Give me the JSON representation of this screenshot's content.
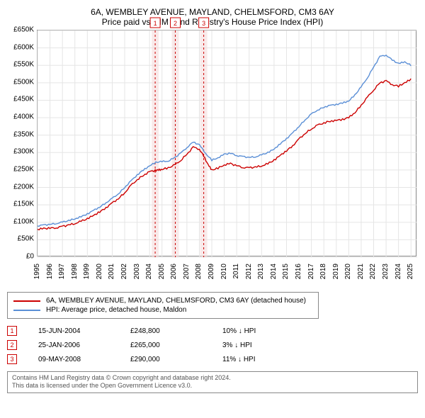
{
  "title": {
    "line1": "6A, WEMBLEY AVENUE, MAYLAND, CHELMSFORD, CM3 6AY",
    "line2": "Price paid vs. HM Land Registry's House Price Index (HPI)"
  },
  "chart": {
    "type": "line",
    "background_color": "#ffffff",
    "border_color": "#888888",
    "grid_color": "#e5e5e5",
    "ylim": [
      0,
      650000
    ],
    "ytick_step": 50000,
    "ytick_labels": [
      "£0",
      "£50K",
      "£100K",
      "£150K",
      "£200K",
      "£250K",
      "£300K",
      "£350K",
      "£400K",
      "£450K",
      "£500K",
      "£550K",
      "£600K",
      "£650K"
    ],
    "xlim": [
      1995,
      2025.5
    ],
    "xtick_step": 1,
    "xtick_labels": [
      "1995",
      "1996",
      "1997",
      "1998",
      "1999",
      "2000",
      "2001",
      "2002",
      "2003",
      "2004",
      "2005",
      "2006",
      "2007",
      "2008",
      "2009",
      "2010",
      "2011",
      "2012",
      "2013",
      "2014",
      "2015",
      "2016",
      "2017",
      "2018",
      "2019",
      "2020",
      "2021",
      "2022",
      "2023",
      "2024",
      "2025"
    ],
    "label_fontsize": 10,
    "line_width": 1.4,
    "series": [
      {
        "name": "property",
        "color": "#cc0000",
        "points": [
          [
            1995.0,
            80000
          ],
          [
            1995.5,
            82000
          ],
          [
            1996.0,
            83000
          ],
          [
            1996.5,
            85000
          ],
          [
            1997.0,
            88000
          ],
          [
            1997.5,
            92000
          ],
          [
            1998.0,
            97000
          ],
          [
            1998.5,
            103000
          ],
          [
            1999.0,
            110000
          ],
          [
            1999.5,
            120000
          ],
          [
            2000.0,
            130000
          ],
          [
            2000.5,
            142000
          ],
          [
            2001.0,
            155000
          ],
          [
            2001.5,
            168000
          ],
          [
            2002.0,
            185000
          ],
          [
            2002.5,
            205000
          ],
          [
            2003.0,
            222000
          ],
          [
            2003.5,
            235000
          ],
          [
            2004.0,
            245000
          ],
          [
            2004.45,
            248800
          ],
          [
            2004.7,
            250000
          ],
          [
            2005.0,
            252000
          ],
          [
            2005.5,
            256000
          ],
          [
            2006.07,
            265000
          ],
          [
            2006.5,
            278000
          ],
          [
            2007.0,
            295000
          ],
          [
            2007.5,
            315000
          ],
          [
            2008.0,
            310000
          ],
          [
            2008.35,
            290000
          ],
          [
            2008.7,
            265000
          ],
          [
            2009.0,
            250000
          ],
          [
            2009.5,
            255000
          ],
          [
            2010.0,
            265000
          ],
          [
            2010.5,
            268000
          ],
          [
            2011.0,
            262000
          ],
          [
            2011.5,
            258000
          ],
          [
            2012.0,
            256000
          ],
          [
            2012.5,
            258000
          ],
          [
            2013.0,
            262000
          ],
          [
            2013.5,
            268000
          ],
          [
            2014.0,
            278000
          ],
          [
            2014.5,
            292000
          ],
          [
            2015.0,
            305000
          ],
          [
            2015.5,
            320000
          ],
          [
            2016.0,
            338000
          ],
          [
            2016.5,
            355000
          ],
          [
            2017.0,
            368000
          ],
          [
            2017.5,
            378000
          ],
          [
            2018.0,
            385000
          ],
          [
            2018.5,
            390000
          ],
          [
            2019.0,
            392000
          ],
          [
            2019.5,
            395000
          ],
          [
            2020.0,
            400000
          ],
          [
            2020.5,
            415000
          ],
          [
            2021.0,
            435000
          ],
          [
            2021.5,
            458000
          ],
          [
            2022.0,
            480000
          ],
          [
            2022.5,
            500000
          ],
          [
            2023.0,
            505000
          ],
          [
            2023.5,
            495000
          ],
          [
            2024.0,
            490000
          ],
          [
            2024.5,
            500000
          ],
          [
            2025.0,
            510000
          ]
        ]
      },
      {
        "name": "hpi",
        "color": "#5b8fd6",
        "points": [
          [
            1995.0,
            90000
          ],
          [
            1995.5,
            92000
          ],
          [
            1996.0,
            94000
          ],
          [
            1996.5,
            97000
          ],
          [
            1997.0,
            100000
          ],
          [
            1997.5,
            105000
          ],
          [
            1998.0,
            110000
          ],
          [
            1998.5,
            116000
          ],
          [
            1999.0,
            124000
          ],
          [
            1999.5,
            134000
          ],
          [
            2000.0,
            144000
          ],
          [
            2000.5,
            156000
          ],
          [
            2001.0,
            168000
          ],
          [
            2001.5,
            182000
          ],
          [
            2002.0,
            200000
          ],
          [
            2002.5,
            218000
          ],
          [
            2003.0,
            236000
          ],
          [
            2003.5,
            250000
          ],
          [
            2004.0,
            262000
          ],
          [
            2004.5,
            272000
          ],
          [
            2005.0,
            274000
          ],
          [
            2005.5,
            276000
          ],
          [
            2006.0,
            285000
          ],
          [
            2006.5,
            298000
          ],
          [
            2007.0,
            315000
          ],
          [
            2007.5,
            330000
          ],
          [
            2008.0,
            322000
          ],
          [
            2008.5,
            298000
          ],
          [
            2009.0,
            278000
          ],
          [
            2009.5,
            285000
          ],
          [
            2010.0,
            295000
          ],
          [
            2010.5,
            298000
          ],
          [
            2011.0,
            292000
          ],
          [
            2011.5,
            288000
          ],
          [
            2012.0,
            286000
          ],
          [
            2012.5,
            288000
          ],
          [
            2013.0,
            293000
          ],
          [
            2013.5,
            300000
          ],
          [
            2014.0,
            310000
          ],
          [
            2014.5,
            325000
          ],
          [
            2015.0,
            340000
          ],
          [
            2015.5,
            356000
          ],
          [
            2016.0,
            375000
          ],
          [
            2016.5,
            394000
          ],
          [
            2017.0,
            410000
          ],
          [
            2017.5,
            422000
          ],
          [
            2018.0,
            430000
          ],
          [
            2018.5,
            435000
          ],
          [
            2019.0,
            438000
          ],
          [
            2019.5,
            442000
          ],
          [
            2020.0,
            448000
          ],
          [
            2020.5,
            465000
          ],
          [
            2021.0,
            488000
          ],
          [
            2021.5,
            515000
          ],
          [
            2022.0,
            545000
          ],
          [
            2022.5,
            575000
          ],
          [
            2023.0,
            580000
          ],
          [
            2023.5,
            565000
          ],
          [
            2024.0,
            555000
          ],
          [
            2024.5,
            560000
          ],
          [
            2025.0,
            550000
          ]
        ]
      }
    ],
    "sale_markers": [
      {
        "n": "1",
        "x": 2004.45,
        "band_color": "#f5dcdc",
        "line_color": "#cc0000"
      },
      {
        "n": "2",
        "x": 2006.07,
        "band_color": "#f5dcdc",
        "line_color": "#cc0000"
      },
      {
        "n": "3",
        "x": 2008.35,
        "band_color": "#f5dcdc",
        "line_color": "#cc0000"
      }
    ]
  },
  "legend": {
    "items": [
      {
        "color": "#cc0000",
        "label": "6A, WEMBLEY AVENUE, MAYLAND, CHELMSFORD, CM3 6AY (detached house)"
      },
      {
        "color": "#5b8fd6",
        "label": "HPI: Average price, detached house, Maldon"
      }
    ]
  },
  "sales": [
    {
      "n": "1",
      "date": "15-JUN-2004",
      "price": "£248,800",
      "diff": "10% ↓ HPI"
    },
    {
      "n": "2",
      "date": "25-JAN-2006",
      "price": "£265,000",
      "diff": "3% ↓ HPI"
    },
    {
      "n": "3",
      "date": "09-MAY-2008",
      "price": "£290,000",
      "diff": "11% ↓ HPI"
    }
  ],
  "disclaimer": {
    "line1": "Contains HM Land Registry data © Crown copyright and database right 2024.",
    "line2": "This data is licensed under the Open Government Licence v3.0."
  }
}
